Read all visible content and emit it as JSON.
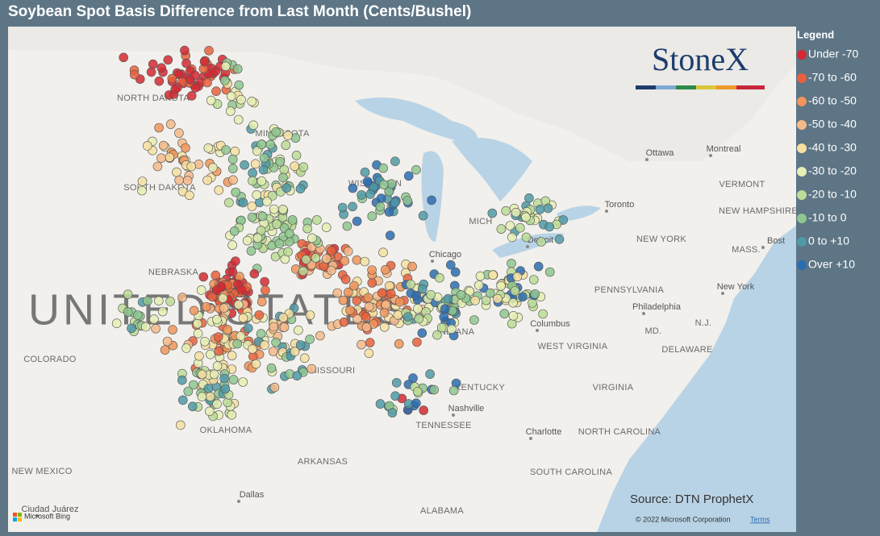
{
  "header": {
    "title": "Soybean Spot Basis Difference from Last Month (Cents/Bushel)"
  },
  "legend": {
    "title": "Legend",
    "items": [
      {
        "label": "Under -70",
        "color": "#d42a34"
      },
      {
        "label": "-70 to -60",
        "color": "#e8613c"
      },
      {
        "label": "-60 to -50",
        "color": "#f0955b"
      },
      {
        "label": "-50 to -40",
        "color": "#f5ba8a"
      },
      {
        "label": "-40 to -30",
        "color": "#f6e1a2"
      },
      {
        "label": "-30 to -20",
        "color": "#e6efb4"
      },
      {
        "label": "-20 to -10",
        "color": "#bcdc97"
      },
      {
        "label": "-10 to 0",
        "color": "#8fc791"
      },
      {
        "label": "0 to +10",
        "color": "#4f9aa6"
      },
      {
        "label": "Over +10",
        "color": "#2b6db2"
      }
    ]
  },
  "logo": "StoneX",
  "map": {
    "country": "UNITED STATES",
    "labels": [
      "NORTH DAKOTA",
      "MINNESOTA",
      "SOUTH DAKOTA",
      "WISCONSIN",
      "NEBRASKA",
      "COLORADO",
      "MISSOURI",
      "KENTUCKY",
      "TENNESSEE",
      "OKLAHOMA",
      "ARKANSAS",
      "NEW MEXICO",
      "ALABAMA",
      "VIRGINIA",
      "WEST VIRGINIA",
      "NORTH CAROLINA",
      "SOUTH CAROLINA",
      "PENNSYLVANIA",
      "NEW YORK",
      "VERMONT",
      "NEW HAMPSHIRE",
      "MASS.",
      "N.J.",
      "MD.",
      "DELAWARE",
      "INDIANA",
      "MICH"
    ],
    "cities": [
      "Ottawa",
      "Montreal",
      "Toronto",
      "Chicago",
      "Detroit",
      "Columbus",
      "Philadelphia",
      "New York",
      "Nashville",
      "Charlotte",
      "Dallas",
      "Bost",
      "Ciudad Juárez"
    ]
  },
  "source": "Source: DTN ProphetX",
  "copyright": "© 2022 Microsoft Corporation",
  "terms": "Terms",
  "bing": "Microsoft Bing"
}
